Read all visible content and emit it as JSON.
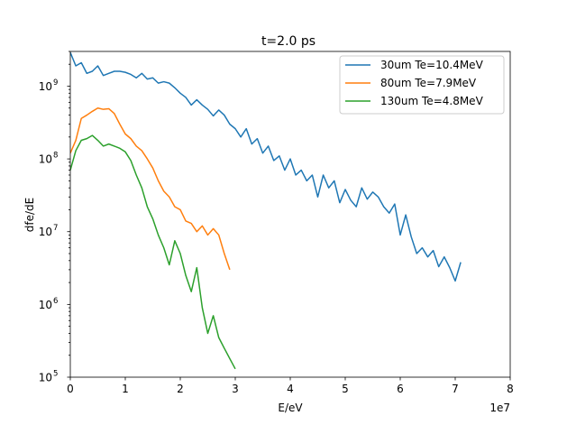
{
  "chart_data": {
    "type": "line",
    "title": "t=2.0 ps",
    "xlabel": "E/eV",
    "ylabel": "dfe/dE",
    "x_scale": "linear",
    "x_multiplier_label": "1e7",
    "x_ticks": [
      "0",
      "1",
      "2",
      "3",
      "4",
      "5",
      "6",
      "7",
      "8"
    ],
    "y_scale": "log",
    "y_ticks": [
      {
        "base": "10",
        "exp": "5"
      },
      {
        "base": "10",
        "exp": "6"
      },
      {
        "base": "10",
        "exp": "7"
      },
      {
        "base": "10",
        "exp": "8"
      },
      {
        "base": "10",
        "exp": "9"
      }
    ],
    "xlim": [
      0,
      8
    ],
    "ylim": [
      100000,
      3000000000
    ],
    "grid": false,
    "legend_position": "top-right",
    "series": [
      {
        "name": "30um Te=10.4MeV",
        "color": "#1f77b4",
        "points": [
          [
            0.0,
            2900000000
          ],
          [
            0.1,
            1900000000
          ],
          [
            0.2,
            2100000000
          ],
          [
            0.3,
            1500000000
          ],
          [
            0.4,
            1600000000
          ],
          [
            0.5,
            1900000000
          ],
          [
            0.6,
            1400000000
          ],
          [
            0.7,
            1500000000
          ],
          [
            0.8,
            1600000000
          ],
          [
            0.9,
            1600000000
          ],
          [
            1.0,
            1550000000
          ],
          [
            1.1,
            1450000000
          ],
          [
            1.2,
            1300000000
          ],
          [
            1.3,
            1500000000
          ],
          [
            1.4,
            1250000000
          ],
          [
            1.5,
            1300000000
          ],
          [
            1.6,
            1100000000
          ],
          [
            1.7,
            1150000000
          ],
          [
            1.8,
            1100000000
          ],
          [
            1.9,
            950000000
          ],
          [
            2.0,
            800000000
          ],
          [
            2.1,
            700000000
          ],
          [
            2.2,
            550000000
          ],
          [
            2.3,
            650000000
          ],
          [
            2.4,
            550000000
          ],
          [
            2.5,
            480000000
          ],
          [
            2.6,
            390000000
          ],
          [
            2.7,
            470000000
          ],
          [
            2.8,
            400000000
          ],
          [
            2.9,
            300000000
          ],
          [
            3.0,
            260000000
          ],
          [
            3.1,
            200000000
          ],
          [
            3.2,
            260000000
          ],
          [
            3.3,
            160000000
          ],
          [
            3.4,
            190000000
          ],
          [
            3.5,
            120000000
          ],
          [
            3.6,
            150000000
          ],
          [
            3.7,
            95000000
          ],
          [
            3.8,
            110000000
          ],
          [
            3.9,
            70000000
          ],
          [
            4.0,
            100000000
          ],
          [
            4.1,
            60000000
          ],
          [
            4.2,
            70000000
          ],
          [
            4.3,
            50000000
          ],
          [
            4.4,
            60000000
          ],
          [
            4.5,
            30000000
          ],
          [
            4.6,
            60000000
          ],
          [
            4.7,
            40000000
          ],
          [
            4.8,
            50000000
          ],
          [
            4.9,
            25000000
          ],
          [
            5.0,
            38000000
          ],
          [
            5.1,
            27000000
          ],
          [
            5.2,
            22000000
          ],
          [
            5.3,
            40000000
          ],
          [
            5.4,
            28000000
          ],
          [
            5.5,
            35000000
          ],
          [
            5.6,
            30000000
          ],
          [
            5.7,
            22000000
          ],
          [
            5.8,
            18000000
          ],
          [
            5.9,
            24000000
          ],
          [
            6.0,
            9000000
          ],
          [
            6.1,
            17000000
          ],
          [
            6.2,
            8500000
          ],
          [
            6.3,
            5000000
          ],
          [
            6.4,
            6000000
          ],
          [
            6.5,
            4500000
          ],
          [
            6.6,
            5500000
          ],
          [
            6.7,
            3300000
          ],
          [
            6.8,
            4500000
          ],
          [
            6.9,
            3200000
          ],
          [
            7.0,
            2100000
          ],
          [
            7.1,
            3800000
          ]
        ]
      },
      {
        "name": "80um Te=7.9MeV",
        "color": "#ff7f0e",
        "points": [
          [
            0.0,
            120000000
          ],
          [
            0.1,
            180000000
          ],
          [
            0.2,
            360000000
          ],
          [
            0.3,
            400000000
          ],
          [
            0.4,
            450000000
          ],
          [
            0.5,
            500000000
          ],
          [
            0.6,
            480000000
          ],
          [
            0.7,
            490000000
          ],
          [
            0.8,
            420000000
          ],
          [
            0.9,
            300000000
          ],
          [
            1.0,
            220000000
          ],
          [
            1.1,
            190000000
          ],
          [
            1.2,
            150000000
          ],
          [
            1.3,
            130000000
          ],
          [
            1.4,
            100000000
          ],
          [
            1.5,
            75000000
          ],
          [
            1.6,
            50000000
          ],
          [
            1.7,
            36000000
          ],
          [
            1.8,
            30000000
          ],
          [
            1.9,
            22000000
          ],
          [
            2.0,
            20000000
          ],
          [
            2.1,
            14000000
          ],
          [
            2.2,
            13000000
          ],
          [
            2.3,
            10000000
          ],
          [
            2.4,
            12000000
          ],
          [
            2.5,
            9000000
          ],
          [
            2.6,
            11000000
          ],
          [
            2.7,
            9000000
          ],
          [
            2.8,
            5000000
          ],
          [
            2.9,
            3000000
          ]
        ]
      },
      {
        "name": "130um Te=4.8MeV",
        "color": "#2ca02c",
        "points": [
          [
            0.0,
            70000000
          ],
          [
            0.1,
            130000000
          ],
          [
            0.2,
            180000000
          ],
          [
            0.3,
            190000000
          ],
          [
            0.4,
            210000000
          ],
          [
            0.5,
            180000000
          ],
          [
            0.6,
            150000000
          ],
          [
            0.7,
            160000000
          ],
          [
            0.8,
            150000000
          ],
          [
            0.9,
            140000000
          ],
          [
            1.0,
            125000000
          ],
          [
            1.1,
            95000000
          ],
          [
            1.2,
            60000000
          ],
          [
            1.3,
            40000000
          ],
          [
            1.4,
            22000000
          ],
          [
            1.5,
            15000000
          ],
          [
            1.6,
            9000000
          ],
          [
            1.7,
            6000000
          ],
          [
            1.8,
            3500000
          ],
          [
            1.9,
            7500000
          ],
          [
            2.0,
            5000000
          ],
          [
            2.1,
            2500000
          ],
          [
            2.2,
            1500000
          ],
          [
            2.3,
            3200000
          ],
          [
            2.4,
            900000
          ],
          [
            2.5,
            400000
          ],
          [
            2.6,
            700000
          ],
          [
            2.7,
            350000
          ],
          [
            2.8,
            250000
          ],
          [
            2.9,
            180000
          ],
          [
            3.0,
            130000
          ]
        ]
      }
    ]
  }
}
